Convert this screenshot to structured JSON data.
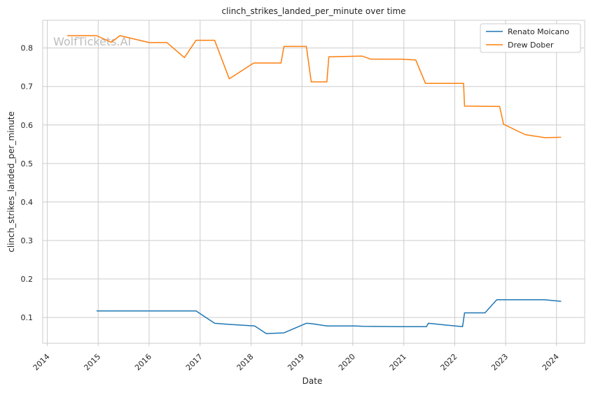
{
  "watermark": "WolfTickets.AI",
  "chart_data": {
    "type": "line",
    "title": "clinch_strikes_landed_per_minute over time",
    "xlabel": "Date",
    "ylabel": "clinch_strikes_landed_per_minute",
    "xlim": [
      "2013-11-29",
      "2024-07-21"
    ],
    "ylim": [
      0.033,
      0.872
    ],
    "xticks": [
      "2014",
      "2015",
      "2016",
      "2017",
      "2018",
      "2019",
      "2020",
      "2021",
      "2022",
      "2023",
      "2024"
    ],
    "yticks": [
      "0.1",
      "0.2",
      "0.3",
      "0.4",
      "0.5",
      "0.6",
      "0.7",
      "0.8"
    ],
    "grid": true,
    "legend_position": "top-right",
    "series": [
      {
        "name": "Renato Moicano",
        "color": "#1f77b4",
        "x": [
          "2014-12-20",
          "2016-12-03",
          "2017-04-15",
          "2017-07-29",
          "2018-01-27",
          "2018-04-21",
          "2018-08-25",
          "2019-02-02",
          "2019-03-09",
          "2019-06-29",
          "2020-01-18",
          "2020-03-14",
          "2020-12-05",
          "2021-06-12",
          "2021-06-26",
          "2022-02-26",
          "2022-03-12",
          "2022-08-06",
          "2022-10-29",
          "2023-10-07",
          "2024-02-03"
        ],
        "y": [
          0.117,
          0.117,
          0.085,
          0.082,
          0.078,
          0.058,
          0.06,
          0.085,
          0.084,
          0.078,
          0.078,
          0.077,
          0.076,
          0.076,
          0.085,
          0.076,
          0.112,
          0.112,
          0.146,
          0.146,
          0.142
        ]
      },
      {
        "name": "Drew Dober",
        "color": "#ff7f0e",
        "x": [
          "2014-05-24",
          "2014-12-20",
          "2015-04-04",
          "2015-06-06",
          "2016-01-02",
          "2016-05-08",
          "2016-09-10",
          "2016-12-03",
          "2017-04-15",
          "2017-07-29",
          "2018-01-20",
          "2018-08-04",
          "2018-08-25",
          "2019-02-02",
          "2019-03-09",
          "2019-06-29",
          "2019-07-13",
          "2020-03-07",
          "2020-05-09",
          "2020-12-12",
          "2021-03-27",
          "2021-06-05",
          "2022-03-05",
          "2022-03-12",
          "2022-11-19",
          "2022-12-17",
          "2023-05-20",
          "2023-10-07",
          "2024-02-03"
        ],
        "y": [
          0.832,
          0.832,
          0.815,
          0.832,
          0.814,
          0.814,
          0.775,
          0.82,
          0.82,
          0.72,
          0.761,
          0.761,
          0.804,
          0.804,
          0.712,
          0.712,
          0.777,
          0.779,
          0.771,
          0.771,
          0.769,
          0.708,
          0.708,
          0.649,
          0.648,
          0.602,
          0.575,
          0.567,
          0.568
        ]
      }
    ]
  }
}
